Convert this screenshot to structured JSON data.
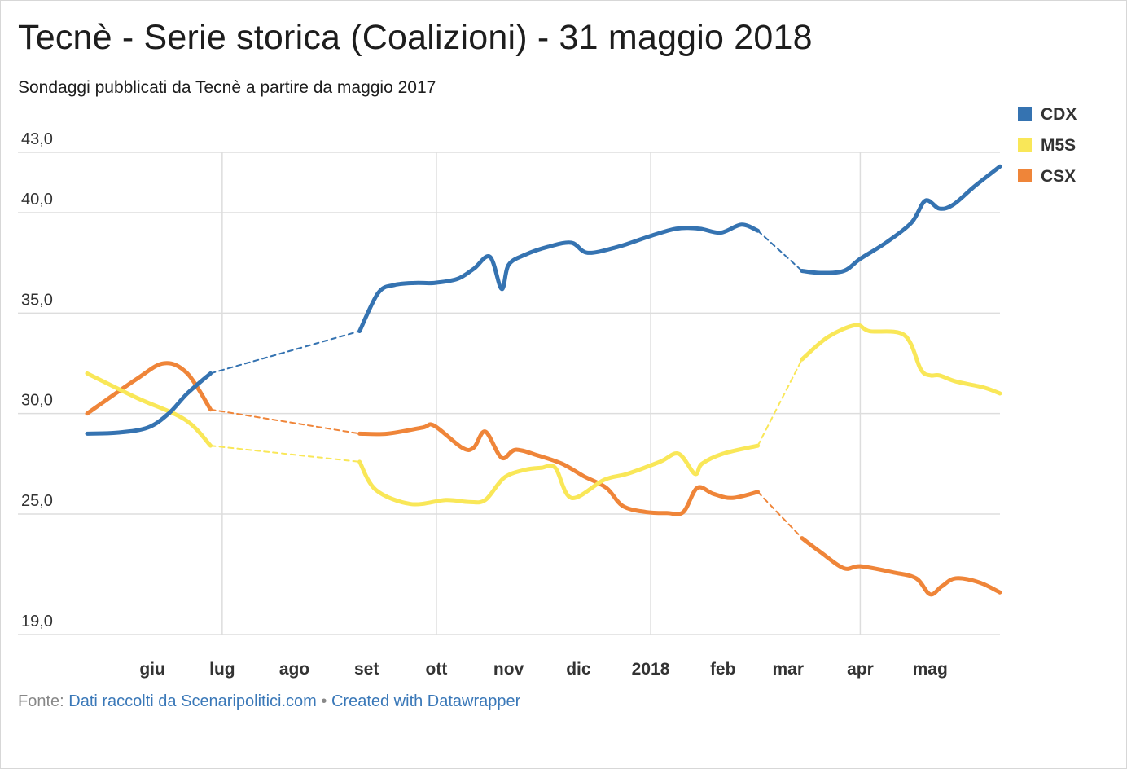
{
  "header": {
    "title": "Tecnè - Serie storica (Coalizioni) - 31 maggio 2018",
    "subtitle": "Sondaggi pubblicati da Tecnè a partire da maggio 2017"
  },
  "footer": {
    "prefix": "Fonte:",
    "source_link": "Dati raccolti da Scenaripolitici.com",
    "separator": "•",
    "created_link": "Created with Datawrapper"
  },
  "colors": {
    "CDX": "#3573b1",
    "M5S": "#f9e758",
    "CSX": "#ef8539",
    "grid": "#dddddd",
    "axis_text": "#333333"
  },
  "chart_data": {
    "type": "line",
    "title": "Tecnè - Serie storica (Coalizioni) - 31 maggio 2018",
    "subtitle": "Sondaggi pubblicati da Tecnè a partire da maggio 2017",
    "xlabel": "",
    "ylabel": "",
    "x_range": [
      "2017-05-04",
      "2018-05-31"
    ],
    "ylim": [
      19,
      43
    ],
    "y_ticks": [
      {
        "value": 43,
        "label": "43,0"
      },
      {
        "value": 40,
        "label": "40,0"
      },
      {
        "value": 35,
        "label": "35,0"
      },
      {
        "value": 30,
        "label": "30,0"
      },
      {
        "value": 25,
        "label": "25,0"
      },
      {
        "value": 19,
        "label": "19,0"
      }
    ],
    "x_ticks": [
      {
        "date": "2017-06-01",
        "label": "giu",
        "gridline": false
      },
      {
        "date": "2017-07-01",
        "label": "lug",
        "gridline": true
      },
      {
        "date": "2017-08-01",
        "label": "ago",
        "gridline": false
      },
      {
        "date": "2017-09-01",
        "label": "set",
        "gridline": false
      },
      {
        "date": "2017-10-01",
        "label": "ott",
        "gridline": true
      },
      {
        "date": "2017-11-01",
        "label": "nov",
        "gridline": false
      },
      {
        "date": "2017-12-01",
        "label": "dic",
        "gridline": false
      },
      {
        "date": "2018-01-01",
        "label": "2018",
        "gridline": true
      },
      {
        "date": "2018-02-01",
        "label": "feb",
        "gridline": false
      },
      {
        "date": "2018-03-01",
        "label": "mar",
        "gridline": false
      },
      {
        "date": "2018-04-01",
        "label": "apr",
        "gridline": true
      },
      {
        "date": "2018-05-01",
        "label": "mag",
        "gridline": false
      }
    ],
    "grid": true,
    "legend_position": "top-right",
    "series": [
      {
        "name": "CDX",
        "color": "#3573b1",
        "segments": [
          {
            "style": "solid",
            "points": [
              [
                "2017-05-04",
                29.0
              ],
              [
                "2017-05-17",
                29.05
              ],
              [
                "2017-05-30",
                29.3
              ],
              [
                "2017-06-08",
                30.0
              ],
              [
                "2017-06-16",
                31.0
              ],
              [
                "2017-06-26",
                32.0
              ]
            ]
          },
          {
            "style": "dashed",
            "points": [
              [
                "2017-06-26",
                32.0
              ],
              [
                "2017-08-29",
                34.1
              ]
            ]
          },
          {
            "style": "solid",
            "points": [
              [
                "2017-08-29",
                34.1
              ],
              [
                "2017-09-06",
                36.0
              ],
              [
                "2017-09-13",
                36.4
              ],
              [
                "2017-09-22",
                36.5
              ],
              [
                "2017-09-30",
                36.5
              ],
              [
                "2017-10-10",
                36.7
              ],
              [
                "2017-10-17",
                37.2
              ],
              [
                "2017-10-24",
                37.8
              ],
              [
                "2017-10-29",
                36.2
              ],
              [
                "2017-11-01",
                37.4
              ],
              [
                "2017-11-08",
                37.9
              ],
              [
                "2017-11-18",
                38.3
              ],
              [
                "2017-11-28",
                38.5
              ],
              [
                "2017-12-05",
                38.0
              ],
              [
                "2017-12-18",
                38.3
              ],
              [
                "2017-12-31",
                38.8
              ],
              [
                "2018-01-12",
                39.2
              ],
              [
                "2018-01-22",
                39.2
              ],
              [
                "2018-01-31",
                39.0
              ],
              [
                "2018-02-09",
                39.4
              ],
              [
                "2018-02-16",
                39.1
              ]
            ]
          },
          {
            "style": "dashed",
            "points": [
              [
                "2018-02-16",
                39.1
              ],
              [
                "2018-03-07",
                37.1
              ]
            ]
          },
          {
            "style": "solid",
            "points": [
              [
                "2018-03-07",
                37.1
              ],
              [
                "2018-03-15",
                37.0
              ],
              [
                "2018-03-25",
                37.1
              ],
              [
                "2018-04-01",
                37.7
              ],
              [
                "2018-04-12",
                38.5
              ],
              [
                "2018-04-23",
                39.5
              ],
              [
                "2018-04-29",
                40.6
              ],
              [
                "2018-05-05",
                40.2
              ],
              [
                "2018-05-11",
                40.4
              ],
              [
                "2018-05-20",
                41.3
              ],
              [
                "2018-05-31",
                42.3
              ]
            ]
          }
        ]
      },
      {
        "name": "M5S",
        "color": "#f9e758",
        "segments": [
          {
            "style": "solid",
            "points": [
              [
                "2017-05-04",
                32.0
              ],
              [
                "2017-05-25",
                30.8
              ],
              [
                "2017-06-15",
                29.7
              ],
              [
                "2017-06-26",
                28.4
              ]
            ]
          },
          {
            "style": "dashed",
            "points": [
              [
                "2017-06-26",
                28.4
              ],
              [
                "2017-08-29",
                27.6
              ]
            ]
          },
          {
            "style": "solid",
            "points": [
              [
                "2017-08-29",
                27.6
              ],
              [
                "2017-09-05",
                26.2
              ],
              [
                "2017-09-20",
                25.5
              ],
              [
                "2017-10-05",
                25.7
              ],
              [
                "2017-10-15",
                25.6
              ],
              [
                "2017-10-22",
                25.7
              ],
              [
                "2017-10-30",
                26.8
              ],
              [
                "2017-11-08",
                27.2
              ],
              [
                "2017-11-15",
                27.3
              ],
              [
                "2017-11-21",
                27.3
              ],
              [
                "2017-11-28",
                25.8
              ],
              [
                "2017-12-12",
                26.7
              ],
              [
                "2017-12-22",
                27.0
              ],
              [
                "2018-01-05",
                27.6
              ],
              [
                "2018-01-13",
                28.0
              ],
              [
                "2018-01-20",
                27.0
              ],
              [
                "2018-01-23",
                27.5
              ],
              [
                "2018-02-01",
                28.0
              ],
              [
                "2018-02-16",
                28.4
              ]
            ]
          },
          {
            "style": "dashed",
            "points": [
              [
                "2018-02-16",
                28.4
              ],
              [
                "2018-03-07",
                32.7
              ]
            ]
          },
          {
            "style": "solid",
            "points": [
              [
                "2018-03-07",
                32.7
              ],
              [
                "2018-03-18",
                33.8
              ],
              [
                "2018-03-30",
                34.4
              ],
              [
                "2018-04-05",
                34.1
              ],
              [
                "2018-04-20",
                33.9
              ],
              [
                "2018-04-27",
                32.2
              ],
              [
                "2018-05-01",
                31.9
              ],
              [
                "2018-05-05",
                31.9
              ],
              [
                "2018-05-12",
                31.6
              ],
              [
                "2018-05-24",
                31.3
              ],
              [
                "2018-05-31",
                31.0
              ]
            ]
          }
        ]
      },
      {
        "name": "CSX",
        "color": "#ef8539",
        "segments": [
          {
            "style": "solid",
            "points": [
              [
                "2017-05-04",
                30.0
              ],
              [
                "2017-05-25",
                31.7
              ],
              [
                "2017-06-06",
                32.5
              ],
              [
                "2017-06-16",
                32.0
              ],
              [
                "2017-06-26",
                30.2
              ]
            ]
          },
          {
            "style": "dashed",
            "points": [
              [
                "2017-06-26",
                30.2
              ],
              [
                "2017-08-29",
                29.0
              ]
            ]
          },
          {
            "style": "solid",
            "points": [
              [
                "2017-08-29",
                29.0
              ],
              [
                "2017-09-10",
                29.0
              ],
              [
                "2017-09-25",
                29.3
              ],
              [
                "2017-09-30",
                29.4
              ],
              [
                "2017-10-12",
                28.3
              ],
              [
                "2017-10-17",
                28.3
              ],
              [
                "2017-10-22",
                29.1
              ],
              [
                "2017-10-29",
                27.8
              ],
              [
                "2017-11-04",
                28.2
              ],
              [
                "2017-11-14",
                27.9
              ],
              [
                "2017-11-24",
                27.5
              ],
              [
                "2017-12-03",
                26.9
              ],
              [
                "2017-12-13",
                26.3
              ],
              [
                "2017-12-20",
                25.4
              ],
              [
                "2017-12-30",
                25.1
              ],
              [
                "2018-01-08",
                25.05
              ],
              [
                "2018-01-15",
                25.1
              ],
              [
                "2018-01-21",
                26.3
              ],
              [
                "2018-01-28",
                26.0
              ],
              [
                "2018-02-05",
                25.8
              ],
              [
                "2018-02-16",
                26.1
              ]
            ]
          },
          {
            "style": "dashed",
            "points": [
              [
                "2018-02-16",
                26.1
              ],
              [
                "2018-03-07",
                23.8
              ]
            ]
          },
          {
            "style": "solid",
            "points": [
              [
                "2018-03-07",
                23.8
              ],
              [
                "2018-03-15",
                23.1
              ],
              [
                "2018-03-25",
                22.3
              ],
              [
                "2018-04-01",
                22.4
              ],
              [
                "2018-04-15",
                22.1
              ],
              [
                "2018-04-25",
                21.8
              ],
              [
                "2018-05-01",
                21.0
              ],
              [
                "2018-05-06",
                21.4
              ],
              [
                "2018-05-12",
                21.8
              ],
              [
                "2018-05-22",
                21.6
              ],
              [
                "2018-05-31",
                21.1
              ]
            ]
          }
        ]
      }
    ]
  }
}
